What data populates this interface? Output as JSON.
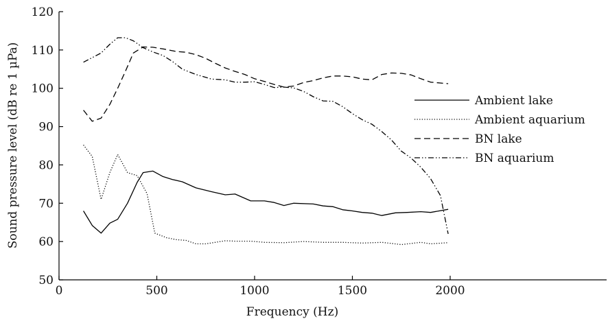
{
  "chart_data": {
    "type": "line",
    "title": "",
    "xlabel": "Frequency (Hz)",
    "ylabel": "Sound pressure level (dB re 1 µPa)",
    "xlim": [
      0,
      2800
    ],
    "ylim": [
      50,
      120
    ],
    "xticks": [
      0,
      500,
      1000,
      1500,
      2000
    ],
    "yticks": [
      50,
      60,
      70,
      80,
      90,
      100,
      110,
      120
    ],
    "grid": false,
    "legend_position": "right",
    "series": [
      {
        "name": "Ambient lake",
        "dash": "solid",
        "x": [
          125,
          170,
          215,
          260,
          300,
          350,
          400,
          430,
          480,
          530,
          580,
          630,
          700,
          780,
          850,
          900,
          980,
          1050,
          1100,
          1150,
          1200,
          1300,
          1350,
          1400,
          1450,
          1500,
          1550,
          1600,
          1650,
          1720,
          1780,
          1850,
          1900,
          1990
        ],
        "y": [
          68,
          64.2,
          62.2,
          64.8,
          65.8,
          70,
          75.5,
          78,
          78.4,
          77,
          76.2,
          75.6,
          74,
          73,
          72.2,
          72.4,
          70.6,
          70.6,
          70.2,
          69.4,
          70,
          69.8,
          69.3,
          69.1,
          68.3,
          68,
          67.6,
          67.4,
          66.8,
          67.5,
          67.6,
          67.8,
          67.6,
          68.4
        ]
      },
      {
        "name": "Ambient aquarium",
        "dash": "dotted",
        "x": [
          125,
          170,
          215,
          260,
          300,
          350,
          400,
          450,
          490,
          550,
          600,
          650,
          700,
          750,
          850,
          900,
          980,
          1050,
          1150,
          1250,
          1350,
          1450,
          1550,
          1650,
          1750,
          1850,
          1900,
          1990
        ],
        "y": [
          85.2,
          82.2,
          71,
          78,
          82.7,
          78,
          77.2,
          72.5,
          62.2,
          61,
          60.5,
          60.3,
          59.4,
          59.4,
          60.2,
          60.1,
          60.1,
          59.8,
          59.7,
          60,
          59.8,
          59.8,
          59.6,
          59.8,
          59.2,
          59.8,
          59.4,
          59.7
        ]
      },
      {
        "name": "BN lake",
        "dash": "dashed",
        "x": [
          125,
          170,
          215,
          260,
          300,
          340,
          380,
          430,
          480,
          540,
          600,
          650,
          700,
          750,
          800,
          850,
          900,
          950,
          1000,
          1050,
          1100,
          1150,
          1200,
          1250,
          1300,
          1350,
          1400,
          1450,
          1500,
          1550,
          1600,
          1650,
          1700,
          1750,
          1800,
          1850,
          1900,
          1990
        ],
        "y": [
          94.3,
          91.4,
          92.2,
          95.8,
          100,
          104.5,
          109.2,
          110.8,
          110.7,
          110.2,
          109.6,
          109.4,
          108.8,
          107.8,
          106.5,
          105.3,
          104.4,
          103.6,
          102.5,
          101.8,
          101,
          100.3,
          100.6,
          101.5,
          102,
          102.7,
          103.2,
          103.2,
          103,
          102.4,
          102.2,
          103.6,
          104,
          103.9,
          103.5,
          102.5,
          101.6,
          101.2
        ]
      },
      {
        "name": "BN aquarium",
        "dash": "dash-dot",
        "x": [
          125,
          170,
          215,
          260,
          300,
          340,
          380,
          430,
          480,
          530,
          580,
          630,
          700,
          780,
          850,
          900,
          950,
          1000,
          1050,
          1100,
          1150,
          1200,
          1250,
          1300,
          1350,
          1400,
          1450,
          1500,
          1550,
          1600,
          1650,
          1700,
          1750,
          1800,
          1850,
          1900,
          1950,
          1990
        ],
        "y": [
          106.8,
          108,
          109.2,
          111.5,
          113.2,
          113.2,
          112.4,
          110.6,
          109.5,
          108.6,
          107,
          105,
          103.6,
          102.4,
          102.2,
          101.6,
          101.6,
          101.7,
          101,
          100.2,
          100.3,
          100.1,
          99.2,
          97.8,
          96.7,
          96.6,
          95.2,
          93.4,
          91.8,
          90.6,
          88.7,
          86.5,
          83.6,
          81.8,
          79.4,
          76.4,
          72,
          62
        ]
      }
    ]
  }
}
